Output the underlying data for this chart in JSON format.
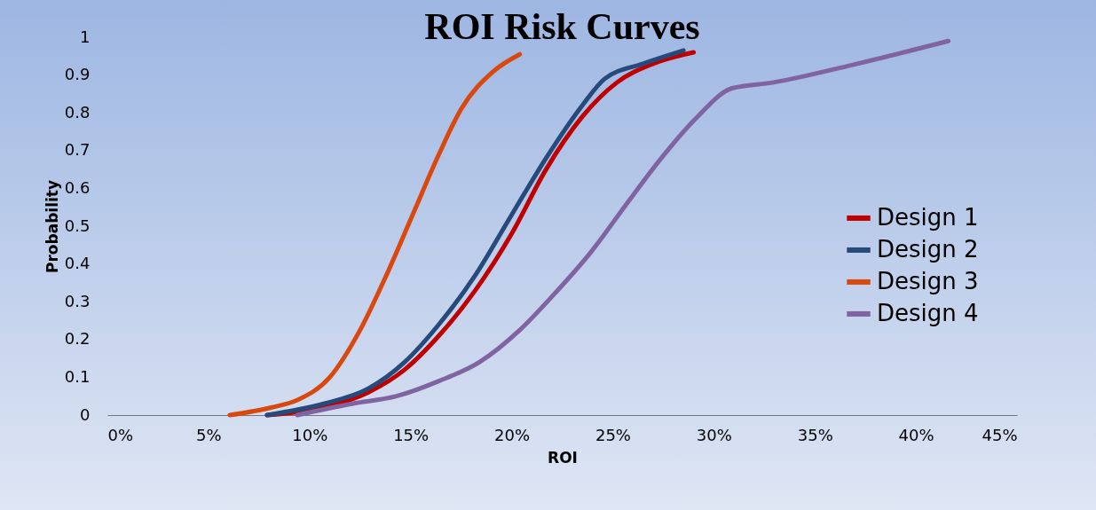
{
  "chart_data": {
    "type": "line",
    "title": "ROI Risk Curves",
    "xlabel": "ROI",
    "ylabel": "Probability",
    "xlim": [
      0,
      45
    ],
    "xticks": [
      {
        "value": 0,
        "label": "0%"
      },
      {
        "value": 5,
        "label": "5%"
      },
      {
        "value": 10,
        "label": "10%"
      },
      {
        "value": 15,
        "label": "15%"
      },
      {
        "value": 20,
        "label": "20%"
      },
      {
        "value": 25,
        "label": "25%"
      },
      {
        "value": 30,
        "label": "30%"
      },
      {
        "value": 35,
        "label": "35%"
      },
      {
        "value": 40,
        "label": "40%"
      },
      {
        "value": 45,
        "label": "45%"
      }
    ],
    "ylim": [
      0,
      1
    ],
    "yticks": [
      0,
      0.1,
      0.2,
      0.3,
      0.4,
      0.5,
      0.6,
      0.7,
      0.8,
      0.9,
      1
    ],
    "grid": false,
    "legend": "right",
    "marker": "none",
    "line_style": "solid",
    "series": [
      {
        "name": "Design 1",
        "color": "#c00000",
        "x": [
          7.9,
          10.7,
          12.9,
          14.7,
          16.4,
          18.2,
          20,
          21.7,
          23.5,
          25.2,
          27,
          29
        ],
        "values": [
          0,
          0.02,
          0.06,
          0.12,
          0.21,
          0.33,
          0.48,
          0.65,
          0.79,
          0.88,
          0.93,
          0.96
        ]
      },
      {
        "name": "Design 2",
        "color": "#254a7b",
        "x": [
          7.9,
          10.7,
          12.9,
          14.7,
          16.4,
          18.2,
          20,
          21.7,
          23.5,
          24.6,
          26.5,
          28.5
        ],
        "values": [
          0,
          0.03,
          0.07,
          0.14,
          0.24,
          0.37,
          0.53,
          0.68,
          0.82,
          0.89,
          0.93,
          0.965
        ]
      },
      {
        "name": "Design 3",
        "color": "#d9480f",
        "x": [
          6.05,
          8.1,
          9.4,
          11,
          12.5,
          13.8,
          15.1,
          16.4,
          17.5,
          19.1,
          20.4
        ],
        "values": [
          0,
          0.02,
          0.04,
          0.1,
          0.225,
          0.37,
          0.53,
          0.69,
          0.81,
          0.91,
          0.955
        ]
      },
      {
        "name": "Design 4",
        "color": "#8064a2",
        "x": [
          9.4,
          12.1,
          14.3,
          16.4,
          18.4,
          20.4,
          22.1,
          23.9,
          25.7,
          27.4,
          29.2,
          30.9,
          32.9,
          37.1,
          41.6
        ],
        "values": [
          0,
          0.03,
          0.05,
          0.09,
          0.14,
          0.225,
          0.32,
          0.43,
          0.56,
          0.68,
          0.79,
          0.865,
          0.88,
          0.93,
          0.99
        ]
      }
    ]
  }
}
